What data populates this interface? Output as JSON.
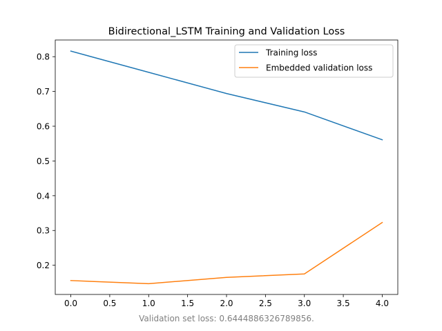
{
  "chart_data": {
    "type": "line",
    "title": "Bidirectional_LSTM Training and Validation Loss",
    "xlabel": "",
    "ylabel": "",
    "x": [
      0,
      1,
      2,
      3,
      4
    ],
    "xticks": [
      "0.0",
      "0.5",
      "1.0",
      "1.5",
      "2.0",
      "2.5",
      "3.0",
      "3.5",
      "4.0"
    ],
    "yticks": [
      "0.2",
      "0.3",
      "0.4",
      "0.5",
      "0.6",
      "0.7",
      "0.8"
    ],
    "xlim": [
      -0.2,
      4.2
    ],
    "ylim": [
      0.116,
      0.848
    ],
    "grid": false,
    "legend_position": "top-right",
    "series": [
      {
        "name": "Training loss",
        "color": "#1f77b4",
        "values": [
          0.816,
          0.755,
          0.694,
          0.641,
          0.561
        ]
      },
      {
        "name": "Embedded validation loss",
        "color": "#ff7f0e",
        "values": [
          0.156,
          0.147,
          0.165,
          0.175,
          0.323
        ]
      }
    ]
  },
  "footnote": "Validation set loss: 0.6444886326789856."
}
